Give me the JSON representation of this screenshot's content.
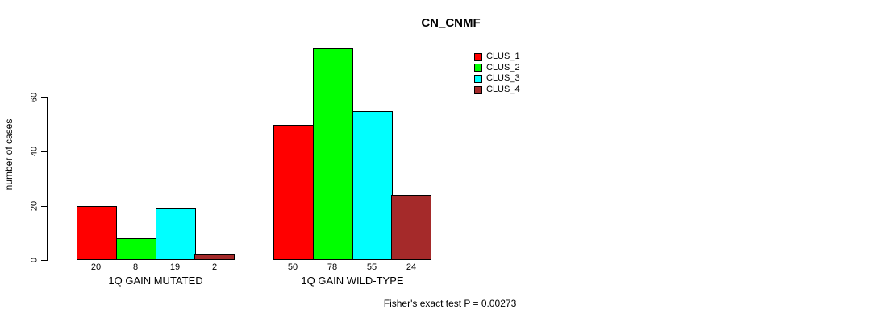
{
  "title": "CN_CNMF",
  "ylabel": "number of cases",
  "footer": "Fisher's exact test P = 0.00273",
  "chart_data": {
    "type": "bar",
    "title": "CN_CNMF",
    "xlabel": "",
    "ylabel": "number of cases",
    "categories": [
      "1Q GAIN MUTATED",
      "1Q GAIN WILD-TYPE"
    ],
    "series": [
      {
        "name": "CLUS_1",
        "color": "#FF0000",
        "values": [
          20,
          50
        ]
      },
      {
        "name": "CLUS_2",
        "color": "#00FF00",
        "values": [
          8,
          78
        ]
      },
      {
        "name": "CLUS_3",
        "color": "#00FFFF",
        "values": [
          19,
          55
        ]
      },
      {
        "name": "CLUS_4",
        "color": "#A52A2A",
        "values": [
          2,
          24
        ]
      }
    ],
    "bar_value_labels": [
      [
        20,
        8,
        19,
        2
      ],
      [
        50,
        78,
        55,
        24
      ]
    ],
    "yticks": [
      0,
      20,
      40,
      60
    ],
    "ylim": [
      0,
      60
    ],
    "grid": false,
    "legend_position": "top-right",
    "annotation": "Fisher's exact test P = 0.00273"
  }
}
